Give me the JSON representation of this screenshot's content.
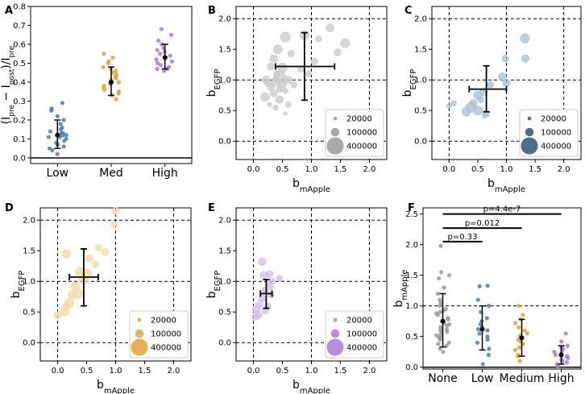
{
  "chart_data": [
    {
      "panel": "A",
      "type": "scatter",
      "ylabel": "(I_pre − I_post)/I_pre",
      "ylabel_main": "(I",
      "ylabel_sub1": "pre",
      "ylabel_mid": " − I",
      "ylabel_sub2": "post",
      "ylabel_mid2": ")/I",
      "ylabel_sub3": "pre",
      "categories": [
        "Low",
        "Med",
        "High"
      ],
      "ylim": [
        -0.03,
        0.8
      ],
      "yticks": [
        0.0,
        0.1,
        0.2,
        0.3,
        0.4,
        0.5,
        0.6,
        0.7,
        0.8
      ],
      "ytick_labels": [
        "0.0",
        "0.1",
        "0.2",
        "0.3",
        "0.4",
        "0.5",
        "0.6",
        "0.7",
        "0.8"
      ],
      "hline": 0,
      "series": [
        {
          "name": "Low",
          "color": "#4e7ea6",
          "mean": 0.12,
          "err_low": 0.05,
          "err_high": 0.2,
          "values": [
            0.04,
            0.05,
            0.06,
            0.07,
            0.08,
            0.09,
            0.1,
            0.11,
            0.11,
            0.12,
            0.12,
            0.13,
            0.13,
            0.14,
            0.15,
            0.16,
            0.18,
            0.2,
            0.22,
            0.25,
            0.26,
            0.29,
            0.02
          ]
        },
        {
          "name": "Med",
          "color": "#d8a63a",
          "mean": 0.4,
          "err_low": 0.33,
          "err_high": 0.48,
          "values": [
            0.31,
            0.33,
            0.34,
            0.35,
            0.36,
            0.37,
            0.38,
            0.39,
            0.4,
            0.41,
            0.42,
            0.43,
            0.44,
            0.45,
            0.46,
            0.47,
            0.48,
            0.5,
            0.51,
            0.53,
            0.55
          ]
        },
        {
          "name": "High",
          "color": "#a87ad8",
          "mean": 0.53,
          "err_low": 0.47,
          "err_high": 0.6,
          "values": [
            0.46,
            0.47,
            0.47,
            0.48,
            0.49,
            0.5,
            0.51,
            0.52,
            0.53,
            0.54,
            0.55,
            0.56,
            0.57,
            0.58,
            0.6,
            0.62,
            0.65,
            0.68
          ]
        }
      ]
    },
    {
      "panel": "B",
      "type": "scatter",
      "xlabel_main": "b",
      "xlabel_sub": "mApple",
      "ylabel_main": "b",
      "ylabel_sub": "EGFP",
      "xlim": [
        -0.3,
        2.3
      ],
      "ylim": [
        -0.3,
        2.2
      ],
      "xticks": [
        0.0,
        0.5,
        1.0,
        1.5,
        2.0
      ],
      "yticks": [
        0.0,
        0.5,
        1.0,
        1.5,
        2.0
      ],
      "xtick_labels": [
        "0.0",
        "0.5",
        "1.0",
        "1.5",
        "2.0"
      ],
      "ytick_labels": [
        "0.0",
        "0.5",
        "1.0",
        "1.5",
        "2.0"
      ],
      "color": "#c8c8c8",
      "mean": [
        0.88,
        1.22
      ],
      "xerr": [
        0.38,
        1.4
      ],
      "yerr": [
        0.67,
        1.77
      ],
      "legend": {
        "labels": [
          "20000",
          "100000",
          "400000"
        ],
        "color": "#999999",
        "sizes": [
          20000,
          100000,
          400000
        ],
        "location": "lower-right"
      },
      "points": [
        {
          "x": 1.32,
          "y": 1.85,
          "s": 90000
        },
        {
          "x": 0.88,
          "y": 1.73,
          "s": 120000
        },
        {
          "x": 0.55,
          "y": 1.7,
          "s": 140000
        },
        {
          "x": 1.12,
          "y": 1.67,
          "s": 50000
        },
        {
          "x": 1.58,
          "y": 1.6,
          "s": 110000
        },
        {
          "x": 0.42,
          "y": 1.5,
          "s": 110000
        },
        {
          "x": 1.45,
          "y": 1.45,
          "s": 70000
        },
        {
          "x": 0.65,
          "y": 1.43,
          "s": 60000
        },
        {
          "x": 0.35,
          "y": 1.35,
          "s": 80000
        },
        {
          "x": 1.05,
          "y": 1.3,
          "s": 60000
        },
        {
          "x": 0.3,
          "y": 1.22,
          "s": 70000
        },
        {
          "x": 0.5,
          "y": 1.2,
          "s": 120000
        },
        {
          "x": 0.82,
          "y": 1.18,
          "s": 60000
        },
        {
          "x": 0.95,
          "y": 1.1,
          "s": 50000
        },
        {
          "x": 0.45,
          "y": 1.05,
          "s": 200000
        },
        {
          "x": 0.22,
          "y": 1.0,
          "s": 80000
        },
        {
          "x": 0.6,
          "y": 1.0,
          "s": 90000
        },
        {
          "x": 0.38,
          "y": 0.97,
          "s": 100000
        },
        {
          "x": 0.25,
          "y": 0.95,
          "s": 60000
        },
        {
          "x": 0.5,
          "y": 0.93,
          "s": 90000
        },
        {
          "x": 0.7,
          "y": 0.92,
          "s": 50000
        },
        {
          "x": 0.3,
          "y": 0.88,
          "s": 70000
        },
        {
          "x": 0.45,
          "y": 0.85,
          "s": 60000
        },
        {
          "x": 0.55,
          "y": 0.82,
          "s": 40000
        },
        {
          "x": 0.35,
          "y": 0.78,
          "s": 70000
        },
        {
          "x": 0.2,
          "y": 0.72,
          "s": 100000
        },
        {
          "x": 0.45,
          "y": 0.68,
          "s": 80000
        },
        {
          "x": 0.6,
          "y": 0.6,
          "s": 50000
        },
        {
          "x": 0.38,
          "y": 0.55,
          "s": 40000
        },
        {
          "x": 0.28,
          "y": 0.6,
          "s": 30000
        },
        {
          "x": 0.55,
          "y": 0.45,
          "s": 20000
        },
        {
          "x": 0.4,
          "y": 1.1,
          "s": 50000
        }
      ]
    },
    {
      "panel": "C",
      "type": "scatter",
      "xlabel_main": "b",
      "xlabel_sub": "mApple",
      "ylabel_main": "b",
      "ylabel_sub": "EGFP",
      "xlim": [
        -0.3,
        2.3
      ],
      "ylim": [
        -0.3,
        2.2
      ],
      "xticks": [
        0.0,
        0.5,
        1.0,
        1.5,
        2.0
      ],
      "yticks": [
        0.0,
        0.5,
        1.0,
        1.5,
        2.0
      ],
      "xtick_labels": [
        "0.0",
        "0.5",
        "1.0",
        "1.5",
        "2.0"
      ],
      "ytick_labels": [
        "0.0",
        "0.5",
        "1.0",
        "1.5",
        "2.0"
      ],
      "color": "#a9c0d2",
      "mean": [
        0.65,
        0.85
      ],
      "xerr": [
        0.35,
        1.0
      ],
      "yerr": [
        0.48,
        1.23
      ],
      "legend": {
        "labels": [
          "20000",
          "100000",
          "400000"
        ],
        "color": "#2f5572",
        "sizes": [
          20000,
          100000,
          400000
        ],
        "location": "lower-right"
      },
      "points": [
        {
          "x": 1.32,
          "y": 1.68,
          "s": 120000
        },
        {
          "x": 1.33,
          "y": 1.35,
          "s": 80000
        },
        {
          "x": 0.98,
          "y": 1.35,
          "s": 60000
        },
        {
          "x": 0.93,
          "y": 1.05,
          "s": 90000
        },
        {
          "x": 1.0,
          "y": 0.95,
          "s": 80000
        },
        {
          "x": 0.72,
          "y": 0.92,
          "s": 60000
        },
        {
          "x": 0.6,
          "y": 0.8,
          "s": 80000
        },
        {
          "x": 0.5,
          "y": 0.75,
          "s": 100000
        },
        {
          "x": 0.55,
          "y": 0.68,
          "s": 60000
        },
        {
          "x": 0.42,
          "y": 0.62,
          "s": 80000
        },
        {
          "x": 0.38,
          "y": 0.55,
          "s": 140000
        },
        {
          "x": 0.3,
          "y": 0.48,
          "s": 110000
        },
        {
          "x": 0.65,
          "y": 0.45,
          "s": 60000
        },
        {
          "x": 0.5,
          "y": 0.5,
          "s": 120000
        },
        {
          "x": 0.08,
          "y": 0.62,
          "s": 40000
        },
        {
          "x": 0.0,
          "y": 0.58,
          "s": 30000
        },
        {
          "x": 0.62,
          "y": 0.42,
          "s": 40000
        }
      ]
    },
    {
      "panel": "D",
      "type": "scatter",
      "xlabel_main": "b",
      "xlabel_sub": "mApple",
      "ylabel_main": "b",
      "ylabel_sub": "EGFP",
      "xlim": [
        -0.3,
        2.3
      ],
      "ylim": [
        -0.3,
        2.2
      ],
      "xticks": [
        0.0,
        0.5,
        1.0,
        1.5,
        2.0
      ],
      "yticks": [
        0.0,
        0.5,
        1.0,
        1.5,
        2.0
      ],
      "xtick_labels": [
        "0.0",
        "0.5",
        "1.0",
        "1.5",
        "2.0"
      ],
      "ytick_labels": [
        "0.0",
        "0.5",
        "1.0",
        "1.5",
        "2.0"
      ],
      "color": "#f1d8a2",
      "mean": [
        0.45,
        1.07
      ],
      "xerr": [
        0.2,
        0.7
      ],
      "yerr": [
        0.6,
        1.53
      ],
      "legend": {
        "labels": [
          "20000",
          "100000",
          "400000"
        ],
        "color": "#e2a23a",
        "sizes": [
          20000,
          100000,
          400000
        ],
        "location": "lower-right"
      },
      "points": [
        {
          "x": 1.0,
          "y": 2.15,
          "s": 80000
        },
        {
          "x": 0.98,
          "y": 1.93,
          "s": 60000
        },
        {
          "x": 0.7,
          "y": 1.55,
          "s": 60000
        },
        {
          "x": 0.82,
          "y": 1.48,
          "s": 80000
        },
        {
          "x": 0.15,
          "y": 1.45,
          "s": 100000
        },
        {
          "x": 0.55,
          "y": 1.38,
          "s": 70000
        },
        {
          "x": 0.65,
          "y": 1.28,
          "s": 60000
        },
        {
          "x": 0.38,
          "y": 1.15,
          "s": 110000
        },
        {
          "x": 0.5,
          "y": 1.12,
          "s": 130000
        },
        {
          "x": 0.45,
          "y": 1.02,
          "s": 120000
        },
        {
          "x": 0.3,
          "y": 0.92,
          "s": 100000
        },
        {
          "x": 0.35,
          "y": 0.8,
          "s": 140000
        },
        {
          "x": 0.25,
          "y": 0.78,
          "s": 90000
        },
        {
          "x": 0.2,
          "y": 0.65,
          "s": 110000
        },
        {
          "x": 0.15,
          "y": 0.58,
          "s": 80000
        },
        {
          "x": 0.12,
          "y": 0.5,
          "s": 90000
        },
        {
          "x": 0.0,
          "y": 0.45,
          "s": 70000
        }
      ]
    },
    {
      "panel": "E",
      "type": "scatter",
      "xlabel_main": "b",
      "xlabel_sub": "mApple",
      "ylabel_main": "b",
      "ylabel_sub": "EGFP",
      "xlim": [
        -0.3,
        2.3
      ],
      "ylim": [
        -0.3,
        2.2
      ],
      "xticks": [
        0.0,
        0.5,
        1.0,
        1.5,
        2.0
      ],
      "yticks": [
        0.0,
        0.5,
        1.0,
        1.5,
        2.0
      ],
      "xtick_labels": [
        "0.0",
        "0.5",
        "1.0",
        "1.5",
        "2.0"
      ],
      "ytick_labels": [
        "0.0",
        "0.5",
        "1.0",
        "1.5",
        "2.0"
      ],
      "color": "#d1bceb",
      "mean": [
        0.22,
        0.8
      ],
      "xerr": [
        0.12,
        0.32
      ],
      "yerr": [
        0.56,
        1.03
      ],
      "legend": {
        "labels": [
          "20000",
          "100000",
          "400000"
        ],
        "color": "#a87ad8",
        "sizes": [
          20000,
          100000,
          400000
        ],
        "location": "lower-right"
      },
      "points": [
        {
          "x": 0.15,
          "y": 1.32,
          "s": 80000
        },
        {
          "x": 0.28,
          "y": 1.12,
          "s": 70000
        },
        {
          "x": 0.18,
          "y": 1.1,
          "s": 80000
        },
        {
          "x": 0.32,
          "y": 1.0,
          "s": 60000
        },
        {
          "x": 0.45,
          "y": 1.05,
          "s": 50000
        },
        {
          "x": 0.28,
          "y": 0.92,
          "s": 80000
        },
        {
          "x": 0.2,
          "y": 0.85,
          "s": 60000
        },
        {
          "x": 0.3,
          "y": 0.78,
          "s": 60000
        },
        {
          "x": 0.15,
          "y": 0.72,
          "s": 70000
        },
        {
          "x": 0.1,
          "y": 0.62,
          "s": 80000
        },
        {
          "x": 0.05,
          "y": 0.55,
          "s": 90000
        },
        {
          "x": 0.2,
          "y": 0.52,
          "s": 60000
        },
        {
          "x": 0.08,
          "y": 0.45,
          "s": 70000
        },
        {
          "x": 0.03,
          "y": 0.42,
          "s": 60000
        },
        {
          "x": 0.25,
          "y": 0.6,
          "s": 50000
        }
      ]
    },
    {
      "panel": "F",
      "type": "scatter",
      "ylabel_main": "b",
      "ylabel_sub": "mApple",
      "categories": [
        "None",
        "Low",
        "Medium",
        "High"
      ],
      "ylim": [
        -0.03,
        2.6
      ],
      "yticks": [
        0.0,
        0.5,
        1.0,
        1.5,
        2.0,
        2.5
      ],
      "ytick_labels": [
        "0.0",
        "0.5",
        "1.0",
        "1.5",
        "2.0",
        "2.5"
      ],
      "hline_dashed": 1.0,
      "hline": 0,
      "significance": [
        {
          "from": "None",
          "to": "Low",
          "label": "p=0.33",
          "y": 2.05
        },
        {
          "from": "None",
          "to": "Medium",
          "label": "p=0.012",
          "y": 2.27
        },
        {
          "from": "None",
          "to": "High",
          "label": "p=4.4e-7",
          "y": 2.5
        }
      ],
      "series": [
        {
          "name": "None",
          "color": "#9a9a9a",
          "mean": 0.75,
          "err_low": 0.33,
          "err_high": 1.2,
          "values": [
            0.3,
            0.35,
            0.38,
            0.4,
            0.45,
            0.48,
            0.5,
            0.52,
            0.55,
            0.58,
            0.6,
            0.62,
            0.65,
            0.68,
            0.7,
            0.72,
            0.75,
            0.78,
            0.8,
            0.85,
            0.88,
            0.9,
            0.92,
            0.95,
            1.0,
            1.05,
            1.1,
            1.2,
            1.3,
            1.45,
            1.5,
            1.55,
            1.98,
            0.25
          ]
        },
        {
          "name": "Low",
          "color": "#4e7ea6",
          "mean": 0.62,
          "err_low": 0.28,
          "err_high": 1.0,
          "values": [
            0.05,
            0.2,
            0.3,
            0.4,
            0.45,
            0.5,
            0.55,
            0.6,
            0.62,
            0.65,
            0.7,
            0.75,
            0.8,
            0.9,
            1.0,
            1.1,
            1.32,
            1.33
          ]
        },
        {
          "name": "Medium",
          "color": "#d8a63a",
          "mean": 0.48,
          "err_low": 0.18,
          "err_high": 0.78,
          "values": [
            0.1,
            0.18,
            0.2,
            0.28,
            0.32,
            0.38,
            0.42,
            0.45,
            0.5,
            0.52,
            0.55,
            0.6,
            0.65,
            0.72,
            0.78,
            0.85,
            1.0
          ]
        },
        {
          "name": "High",
          "color": "#a87ad8",
          "mean": 0.2,
          "err_low": 0.05,
          "err_high": 0.35,
          "values": [
            0.02,
            0.05,
            0.08,
            0.1,
            0.12,
            0.15,
            0.18,
            0.2,
            0.22,
            0.25,
            0.28,
            0.3,
            0.32,
            0.35,
            0.42,
            0.55
          ]
        }
      ]
    }
  ]
}
